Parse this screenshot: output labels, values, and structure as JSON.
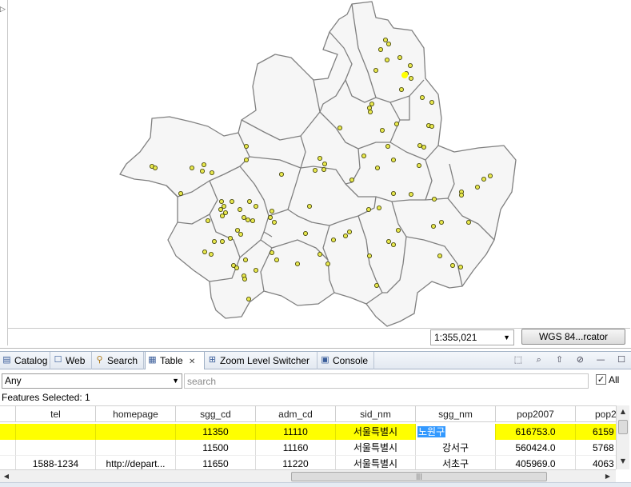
{
  "map": {
    "scale": "1:355,021",
    "crs_button": "WGS 84...rcator",
    "district_fill": "#f6f6f6",
    "border_color": "#808080",
    "point_fill": "#e6e64d"
  },
  "tabs": [
    {
      "label": "Catalog",
      "icon": "catalog-icon"
    },
    {
      "label": "Web",
      "icon": "web-icon"
    },
    {
      "label": "Search",
      "icon": "search-icon"
    },
    {
      "label": "Table",
      "icon": "table-icon",
      "active": true
    },
    {
      "label": "Zoom Level Switcher",
      "icon": "zoom-level-icon"
    },
    {
      "label": "Console",
      "icon": "console-icon"
    }
  ],
  "filter": {
    "select_value": "Any",
    "search_placeholder": "search",
    "all_label": "All",
    "all_checked": true
  },
  "features_selected": "Features Selected: 1",
  "table": {
    "columns": [
      "tel",
      "homepage",
      "sgg_cd",
      "adm_cd",
      "sid_nm",
      "sgg_nm",
      "pop2007",
      "pop2"
    ],
    "rows": [
      {
        "tel": "",
        "homepage": "",
        "sgg_cd": "11350",
        "adm_cd": "11110",
        "sid_nm": "서울특별시",
        "sgg_nm": "노원구",
        "pop2007": "616753.0",
        "pop2": "6159",
        "selected": true
      },
      {
        "tel": "",
        "homepage": "",
        "sgg_cd": "11500",
        "adm_cd": "11160",
        "sid_nm": "서울특별시",
        "sgg_nm": "강서구",
        "pop2007": "560424.0",
        "pop2": "5768"
      },
      {
        "tel": "1588-1234",
        "homepage": "http://depart...",
        "sgg_cd": "11650",
        "adm_cd": "11220",
        "sid_nm": "서울특별시",
        "sgg_nm": "서초구",
        "pop2007": "405969.0",
        "pop2": "4063"
      }
    ]
  },
  "colors": {
    "selection_row": "#ffff00",
    "text_selection": "#3399ff"
  }
}
